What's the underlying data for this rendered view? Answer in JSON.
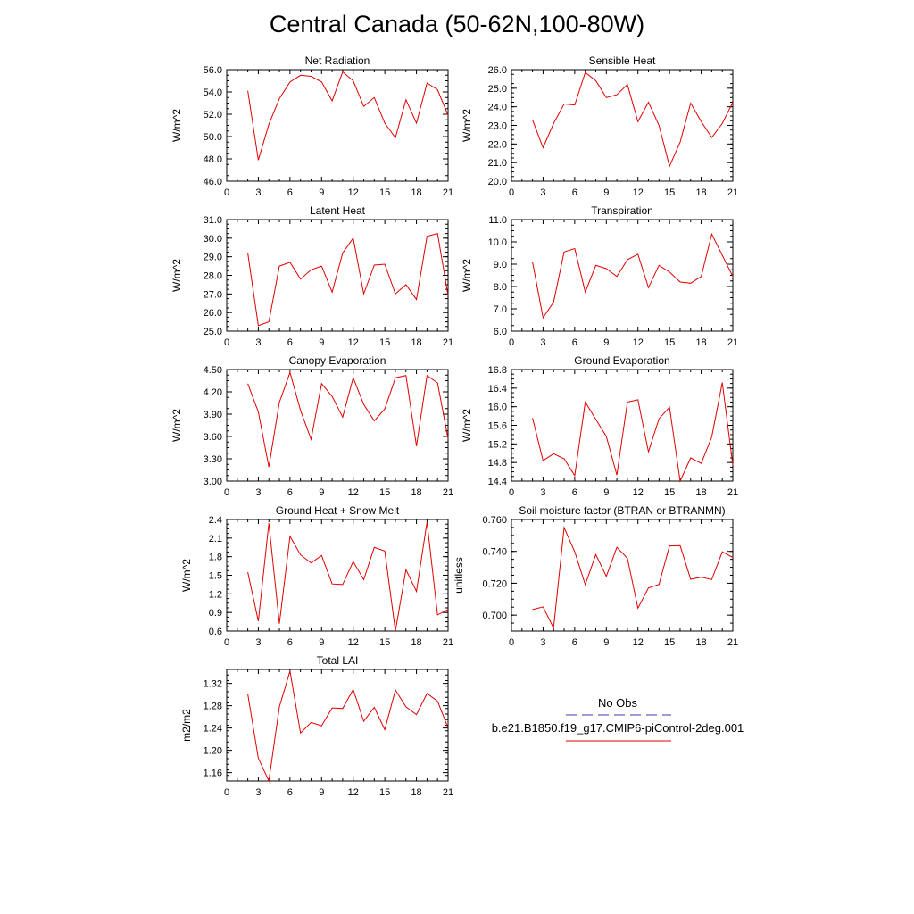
{
  "title": "Central Canada (50-62N,100-80W)",
  "legend": {
    "entries": [
      {
        "label": "No Obs",
        "color": "#3b3bb0",
        "style": "dashed"
      },
      {
        "label": "b.e21.B1850.f19_g17.CMIP6-piControl-2deg.001",
        "color": "#e00000",
        "style": "solid"
      }
    ]
  },
  "chart_data": [
    {
      "type": "line",
      "title": "Net Radiation",
      "ylabel": "W/m^2",
      "xlabel": "",
      "xlim": [
        0,
        21
      ],
      "ylim": [
        46,
        56
      ],
      "yticks": [
        "46.0",
        "48.0",
        "50.0",
        "52.0",
        "54.0",
        "56.0"
      ],
      "ytick_values": [
        46,
        48,
        50,
        52,
        54,
        56
      ],
      "series": [
        {
          "color": "#e00000",
          "x": [
            2,
            3,
            4,
            5,
            6,
            7,
            8,
            9,
            10,
            11,
            12,
            13,
            14,
            15,
            16,
            17,
            18,
            19,
            20,
            21
          ],
          "y": [
            54.1,
            47.9,
            51.1,
            53.4,
            54.9,
            55.5,
            55.4,
            54.9,
            53.2,
            55.8,
            55.0,
            52.7,
            53.5,
            51.2,
            49.9,
            53.3,
            51.2,
            54.8,
            54.2,
            51.9
          ]
        }
      ]
    },
    {
      "type": "line",
      "title": "Sensible Heat",
      "ylabel": "W/m^2",
      "xlabel": "",
      "xlim": [
        0,
        21
      ],
      "ylim": [
        20,
        26
      ],
      "yticks": [
        "20.0",
        "21.0",
        "22.0",
        "23.0",
        "24.0",
        "25.0",
        "26.0"
      ],
      "ytick_values": [
        20,
        21,
        22,
        23,
        24,
        25,
        26
      ],
      "series": [
        {
          "color": "#e00000",
          "x": [
            2,
            3,
            4,
            5,
            6,
            7,
            8,
            9,
            10,
            11,
            12,
            13,
            14,
            15,
            16,
            17,
            18,
            19,
            20,
            21
          ],
          "y": [
            23.3,
            21.8,
            23.1,
            24.15,
            24.1,
            25.85,
            25.4,
            24.5,
            24.65,
            25.2,
            23.2,
            24.25,
            23.0,
            20.8,
            22.1,
            24.2,
            23.2,
            22.35,
            23.1,
            24.25
          ]
        }
      ]
    },
    {
      "type": "line",
      "title": "Latent Heat",
      "ylabel": "W/m^2",
      "xlabel": "",
      "xlim": [
        0,
        21
      ],
      "ylim": [
        25,
        31
      ],
      "yticks": [
        "25.0",
        "26.0",
        "27.0",
        "28.0",
        "29.0",
        "30.0",
        "31.0"
      ],
      "ytick_values": [
        25,
        26,
        27,
        28,
        29,
        30,
        31
      ],
      "series": [
        {
          "color": "#e00000",
          "x": [
            2,
            3,
            4,
            5,
            6,
            7,
            8,
            9,
            10,
            11,
            12,
            13,
            14,
            15,
            16,
            17,
            18,
            19,
            20,
            21
          ],
          "y": [
            29.2,
            25.3,
            25.5,
            28.5,
            28.7,
            27.8,
            28.3,
            28.5,
            27.1,
            29.2,
            30.0,
            27.0,
            28.55,
            28.6,
            27.0,
            27.5,
            26.7,
            30.1,
            30.25,
            26.9
          ]
        }
      ]
    },
    {
      "type": "line",
      "title": "Transpiration",
      "ylabel": "W/m^2",
      "xlabel": "",
      "xlim": [
        0,
        21
      ],
      "ylim": [
        6,
        11
      ],
      "yticks": [
        "6.0",
        "7.0",
        "8.0",
        "9.0",
        "10.0",
        "11.0"
      ],
      "ytick_values": [
        6,
        7,
        8,
        9,
        10,
        11
      ],
      "series": [
        {
          "color": "#e00000",
          "x": [
            2,
            3,
            4,
            5,
            6,
            7,
            8,
            9,
            10,
            11,
            12,
            13,
            14,
            15,
            16,
            17,
            18,
            19,
            20,
            21
          ],
          "y": [
            9.1,
            6.6,
            7.3,
            9.55,
            9.7,
            7.75,
            8.95,
            8.8,
            8.45,
            9.2,
            9.45,
            7.95,
            8.95,
            8.65,
            8.2,
            8.15,
            8.45,
            10.35,
            9.4,
            8.45
          ]
        }
      ]
    },
    {
      "type": "line",
      "title": "Canopy Evaporation",
      "ylabel": "W/m^2",
      "xlabel": "",
      "xlim": [
        0,
        21
      ],
      "ylim": [
        3.0,
        4.5
      ],
      "yticks": [
        "3.00",
        "3.30",
        "3.60",
        "3.90",
        "4.20",
        "4.50"
      ],
      "ytick_values": [
        3.0,
        3.3,
        3.6,
        3.9,
        4.2,
        4.5
      ],
      "series": [
        {
          "color": "#e00000",
          "x": [
            2,
            3,
            4,
            5,
            6,
            7,
            8,
            9,
            10,
            11,
            12,
            13,
            14,
            15,
            16,
            17,
            18,
            19,
            20,
            21
          ],
          "y": [
            4.31,
            3.93,
            3.19,
            4.06,
            4.46,
            3.95,
            3.56,
            4.31,
            4.14,
            3.86,
            4.39,
            4.03,
            3.81,
            3.97,
            4.39,
            4.42,
            3.47,
            4.42,
            4.32,
            3.57
          ]
        }
      ]
    },
    {
      "type": "line",
      "title": "Ground Evaporation",
      "ylabel": "W/m^2",
      "xlabel": "",
      "xlim": [
        0,
        21
      ],
      "ylim": [
        14.4,
        16.8
      ],
      "yticks": [
        "14.4",
        "14.8",
        "15.2",
        "15.6",
        "16.0",
        "16.4",
        "16.8"
      ],
      "ytick_values": [
        14.4,
        14.8,
        15.2,
        15.6,
        16.0,
        16.4,
        16.8
      ],
      "series": [
        {
          "color": "#e00000",
          "x": [
            2,
            3,
            4,
            5,
            6,
            7,
            8,
            9,
            10,
            11,
            12,
            13,
            14,
            15,
            16,
            17,
            18,
            19,
            20,
            21
          ],
          "y": [
            15.76,
            14.84,
            14.99,
            14.88,
            14.52,
            16.1,
            15.73,
            15.36,
            14.53,
            16.1,
            16.15,
            15.03,
            15.74,
            15.99,
            14.4,
            14.9,
            14.78,
            15.35,
            16.52,
            14.74
          ]
        }
      ]
    },
    {
      "type": "line",
      "title": "Ground Heat + Snow Melt",
      "ylabel": "W/m^2",
      "xlabel": "",
      "xlim": [
        0,
        21
      ],
      "ylim": [
        0.6,
        2.4
      ],
      "yticks": [
        "0.6",
        "0.9",
        "1.2",
        "1.5",
        "1.8",
        "2.1",
        "2.4"
      ],
      "ytick_values": [
        0.6,
        0.9,
        1.2,
        1.5,
        1.8,
        2.1,
        2.4
      ],
      "series": [
        {
          "color": "#e00000",
          "x": [
            2,
            3,
            4,
            5,
            6,
            7,
            8,
            9,
            10,
            11,
            12,
            13,
            14,
            15,
            16,
            17,
            18,
            19,
            20,
            21
          ],
          "y": [
            1.55,
            0.76,
            2.34,
            0.72,
            2.13,
            1.83,
            1.7,
            1.82,
            1.36,
            1.35,
            1.72,
            1.43,
            1.95,
            1.89,
            0.6,
            1.59,
            1.24,
            2.36,
            0.86,
            0.95
          ]
        }
      ]
    },
    {
      "type": "line",
      "title": "Soil moisture factor (BTRAN or BTRANMN)",
      "ylabel": "unitless",
      "xlabel": "",
      "xlim": [
        0,
        21
      ],
      "ylim": [
        0.69,
        0.76
      ],
      "yticks": [
        "0.700",
        "0.720",
        "0.740",
        "0.760"
      ],
      "ytick_values": [
        0.7,
        0.72,
        0.74,
        0.76
      ],
      "series": [
        {
          "color": "#e00000",
          "x": [
            2,
            3,
            4,
            5,
            6,
            7,
            8,
            9,
            10,
            11,
            12,
            13,
            14,
            15,
            16,
            17,
            18,
            19,
            20,
            21
          ],
          "y": [
            0.7035,
            0.7052,
            0.6919,
            0.7549,
            0.7397,
            0.7191,
            0.738,
            0.7243,
            0.7425,
            0.7357,
            0.7044,
            0.7171,
            0.7193,
            0.7434,
            0.7436,
            0.7225,
            0.7238,
            0.7223,
            0.7397,
            0.7362
          ]
        }
      ]
    },
    {
      "type": "line",
      "title": "Total LAI",
      "ylabel": "m2/m2",
      "xlabel": "",
      "xlim": [
        0,
        21
      ],
      "ylim": [
        1.145,
        1.345
      ],
      "yticks": [
        "1.16",
        "1.20",
        "1.24",
        "1.28",
        "1.32"
      ],
      "ytick_values": [
        1.16,
        1.2,
        1.24,
        1.28,
        1.32
      ],
      "series": [
        {
          "color": "#e00000",
          "x": [
            2,
            3,
            4,
            5,
            6,
            7,
            8,
            9,
            10,
            11,
            12,
            13,
            14,
            15,
            16,
            17,
            18,
            19,
            20,
            21
          ],
          "y": [
            1.301,
            1.186,
            1.145,
            1.278,
            1.342,
            1.231,
            1.25,
            1.244,
            1.276,
            1.275,
            1.309,
            1.252,
            1.277,
            1.237,
            1.308,
            1.278,
            1.264,
            1.302,
            1.288,
            1.24
          ]
        }
      ]
    }
  ],
  "xticks": [
    "0",
    "3",
    "6",
    "9",
    "12",
    "15",
    "18",
    "21"
  ],
  "xtick_values": [
    0,
    3,
    6,
    9,
    12,
    15,
    18,
    21
  ]
}
